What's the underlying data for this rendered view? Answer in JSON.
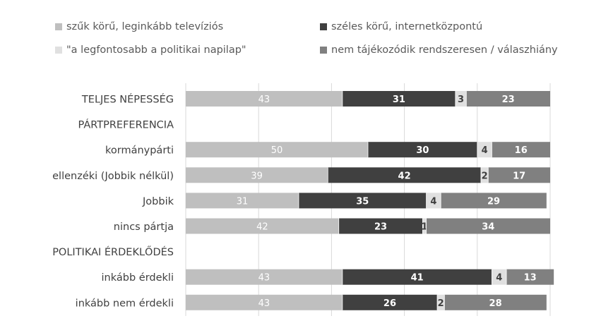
{
  "chart_data": {
    "type": "bar",
    "orientation": "horizontal",
    "stacked": "percent",
    "legend_position": "top",
    "grid": true,
    "xlim": [
      0,
      100
    ],
    "colors": [
      "#bfbfbf",
      "#404040",
      "#e0e0e0",
      "#808080"
    ],
    "label_colors": [
      "#ffffff",
      "#ffffff",
      "#404040",
      "#ffffff"
    ],
    "categories": [
      "TELJES NÉPESSÉG",
      "PÁRTPREFERENCIA",
      "kormánypárti",
      "ellenzéki (Jobbik nélkül)",
      "Jobbik",
      "nincs pártja",
      "POLITIKAI ÉRDEKLŐDÉS",
      "inkább érdekli",
      "inkább nem érdekli"
    ],
    "series": [
      {
        "name": "szűk körű, leginkább televíziós",
        "values": [
          43,
          null,
          50,
          39,
          31,
          42,
          null,
          43,
          43
        ]
      },
      {
        "name": "széles körű, internetközpontú",
        "values": [
          31,
          null,
          30,
          42,
          35,
          23,
          null,
          41,
          26
        ]
      },
      {
        "name": "\"a legfontosabb a politikai napilap\"",
        "values": [
          3,
          null,
          4,
          2,
          4,
          1,
          null,
          4,
          2
        ]
      },
      {
        "name": "nem tájékozódik rendszeresen / válaszhiány",
        "values": [
          23,
          null,
          16,
          17,
          29,
          34,
          null,
          13,
          28
        ]
      }
    ]
  }
}
